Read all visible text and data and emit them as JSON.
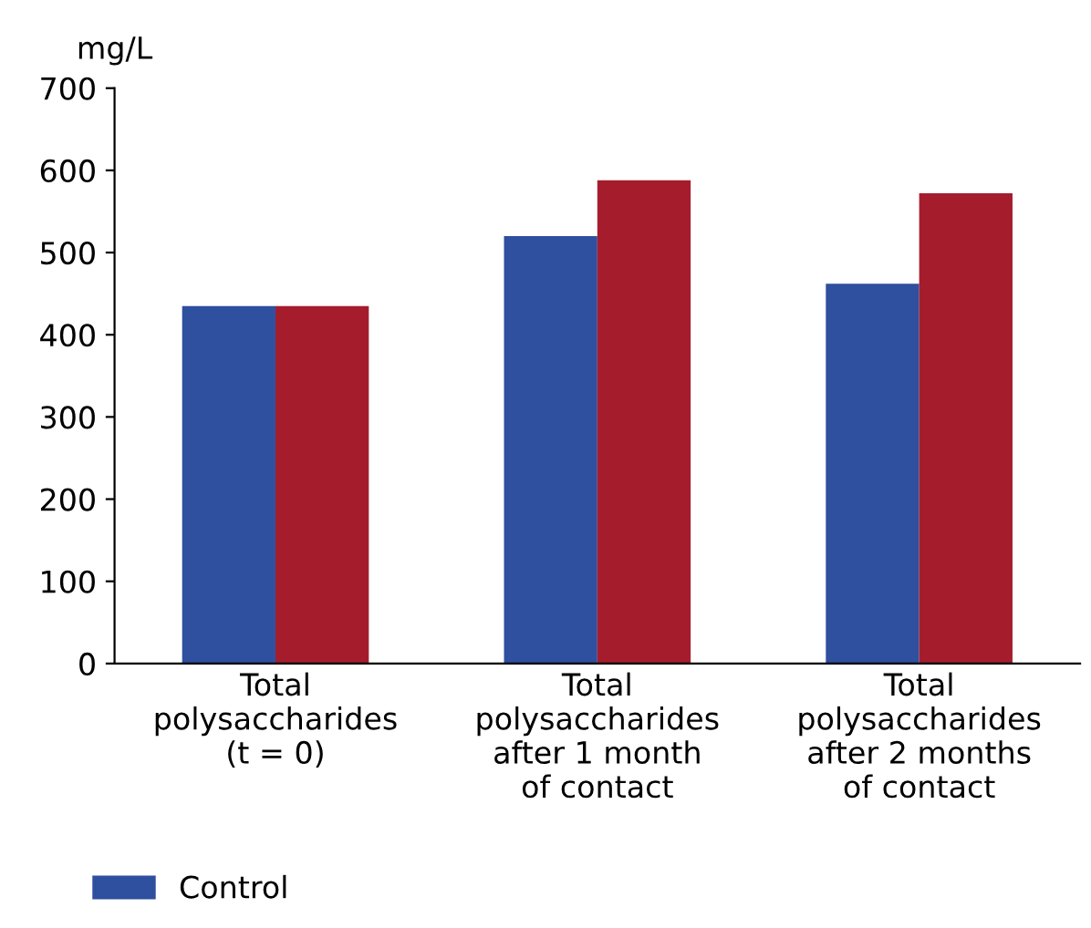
{
  "chart_data": {
    "type": "bar",
    "ylabel": "mg/L",
    "categories": [
      "Total\npolysaccharides\n(t = 0)",
      "Total\npolysaccharides\nafter 1 month\nof contact",
      "Total\npolysaccharides\nafter 2 months\nof contact"
    ],
    "series": [
      {
        "name": "Control",
        "color": "#2f4f9f",
        "values": [
          435,
          520,
          462
        ]
      },
      {
        "color": "#a51d2d",
        "values": [
          435,
          588,
          572
        ]
      }
    ],
    "ylim": [
      0,
      700
    ],
    "yticks": [
      0,
      100,
      200,
      300,
      400,
      500,
      600,
      700
    ],
    "grid": false,
    "legend": "bottom"
  }
}
